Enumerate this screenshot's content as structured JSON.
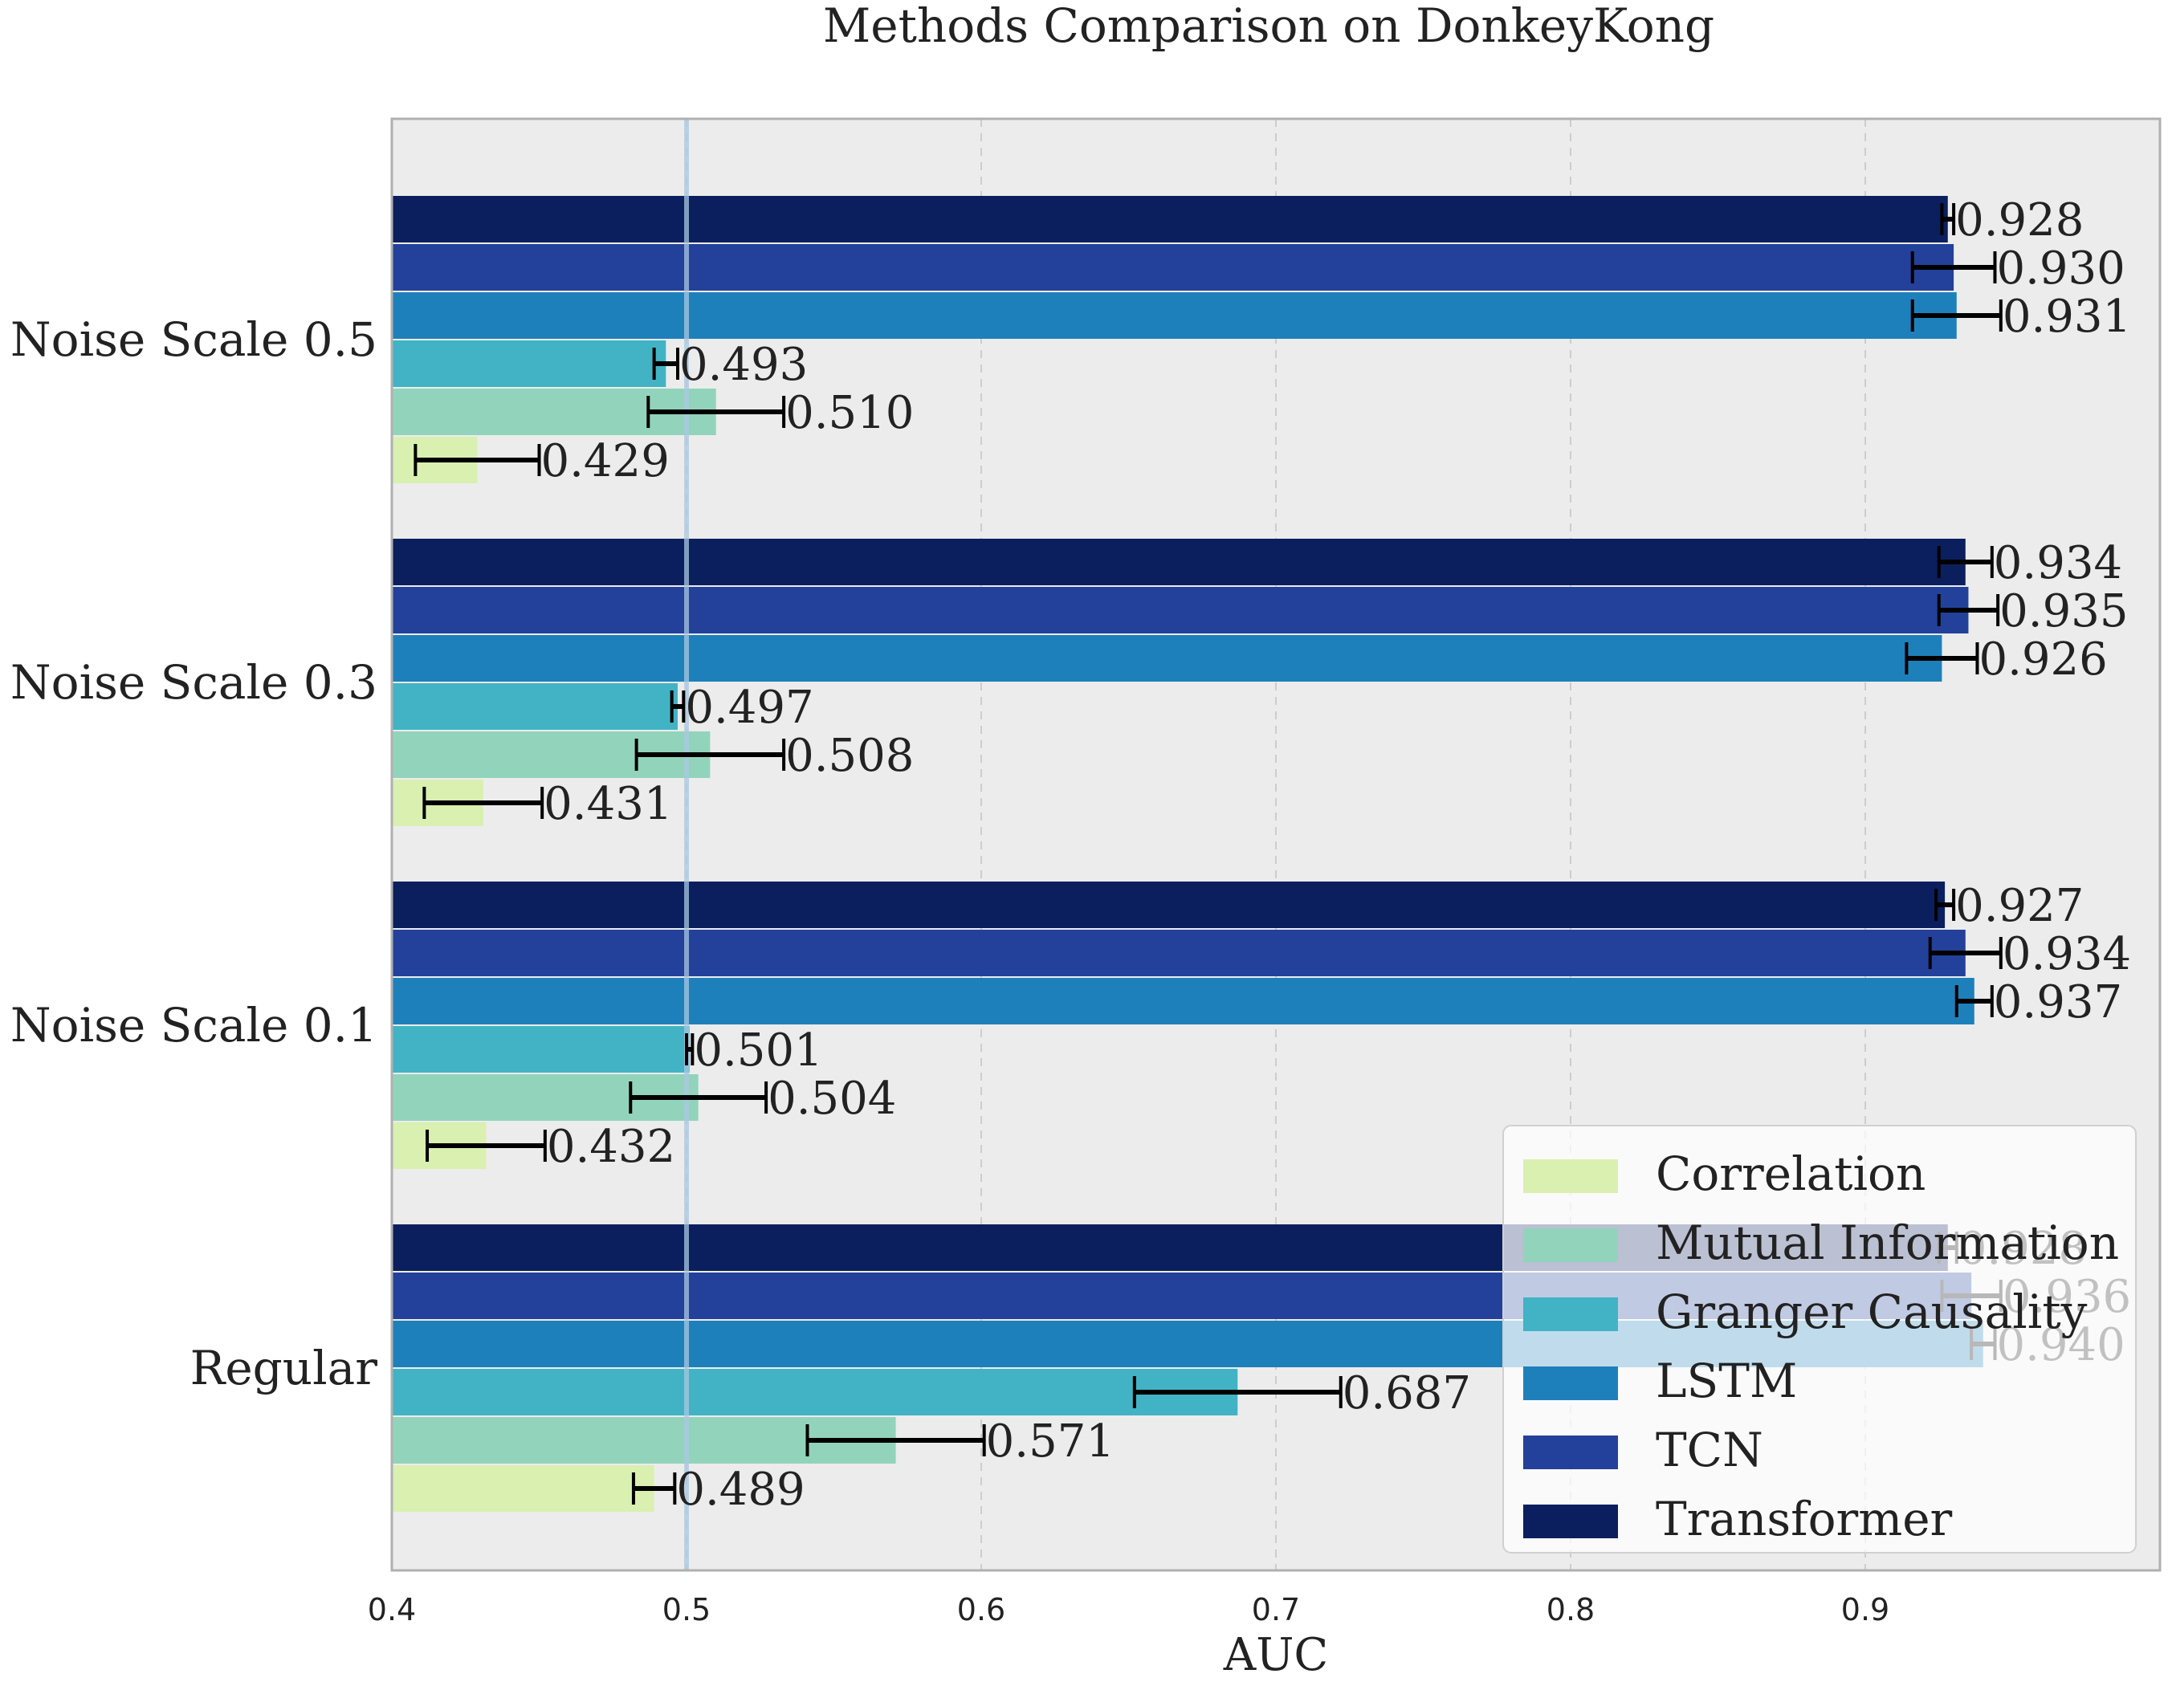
{
  "chart_data": {
    "type": "bar",
    "orientation": "horizontal",
    "title": "Methods Comparison on DonkeyKong",
    "xlabel": "AUC",
    "ylabel": "",
    "xlim": [
      0.4,
      1.0
    ],
    "xticks": [
      "0.4",
      "0.5",
      "0.6",
      "0.7",
      "0.8",
      "0.9"
    ],
    "reference_line": 0.5,
    "grid": true,
    "legend_position": "lower-right",
    "categories": [
      "Noise Scale 0.5",
      "Noise Scale 0.3",
      "Noise Scale 0.1",
      "Regular"
    ],
    "series": [
      {
        "name": "Correlation",
        "color": "#d9f0b0",
        "values": [
          0.429,
          0.431,
          0.432,
          0.489
        ],
        "errors": [
          0.021,
          0.02,
          0.02,
          0.007
        ],
        "labels": [
          "0.429",
          "0.431",
          "0.432",
          "0.489"
        ]
      },
      {
        "name": "Mutual Information",
        "color": "#92d4bb",
        "values": [
          0.51,
          0.508,
          0.504,
          0.571
        ],
        "errors": [
          0.023,
          0.025,
          0.023,
          0.03
        ],
        "labels": [
          "0.510",
          "0.508",
          "0.504",
          "0.571"
        ]
      },
      {
        "name": "Granger Causality",
        "color": "#41b3c5",
        "values": [
          0.493,
          0.497,
          0.501,
          0.687
        ],
        "errors": [
          0.004,
          0.002,
          0.001,
          0.035
        ],
        "labels": [
          "0.493",
          "0.497",
          "0.501",
          "0.687"
        ]
      },
      {
        "name": "LSTM",
        "color": "#1e80bb",
        "values": [
          0.931,
          0.926,
          0.937,
          0.94
        ],
        "errors": [
          0.015,
          0.012,
          0.006,
          0.004
        ],
        "labels": [
          "0.931",
          "0.926",
          "0.937",
          "0.940"
        ]
      },
      {
        "name": "TCN",
        "color": "#23419b",
        "values": [
          0.93,
          0.935,
          0.934,
          0.936
        ],
        "errors": [
          0.014,
          0.01,
          0.012,
          0.01
        ],
        "labels": [
          "0.930",
          "0.935",
          "0.934",
          "0.936"
        ]
      },
      {
        "name": "Transformer",
        "color": "#0b1f5e",
        "values": [
          0.928,
          0.934,
          0.927,
          0.928
        ],
        "errors": [
          0.002,
          0.009,
          0.003,
          0.003
        ],
        "labels": [
          "0.928",
          "0.934",
          "0.927",
          "0.928"
        ]
      }
    ]
  }
}
